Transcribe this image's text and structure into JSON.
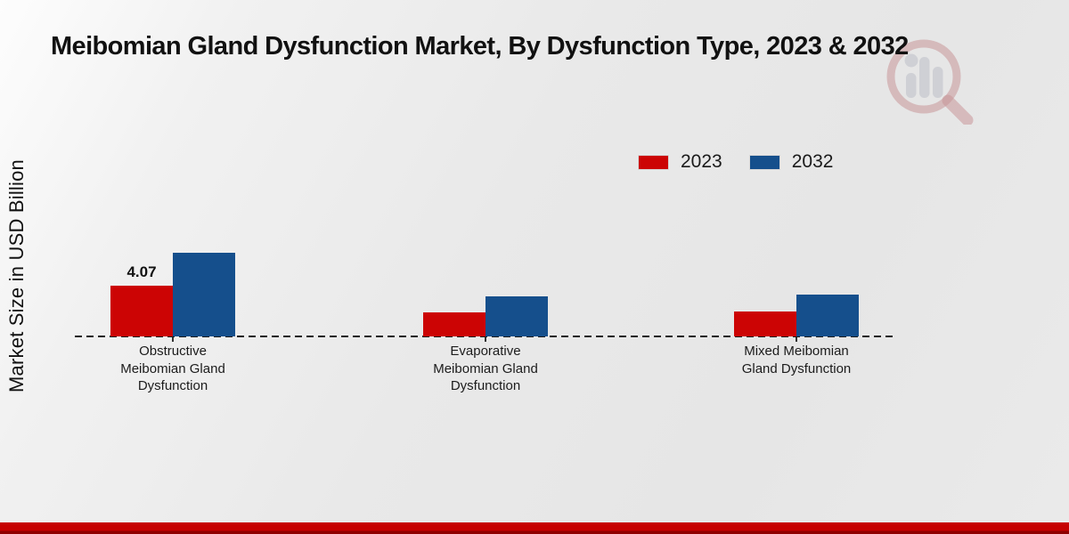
{
  "page": {
    "title": "Meibomian Gland Dysfunction Market, By Dysfunction Type, 2023 & 2032",
    "y_axis_label": "Market Size in USD Billion"
  },
  "watermark": {
    "icon": "magnifier-bar-chart-logo",
    "ring_color": "#a33339",
    "bars_color": "#a9adb8"
  },
  "chart_data": {
    "type": "bar",
    "title": "Meibomian Gland Dysfunction Market, By Dysfunction Type, 2023 & 2032",
    "xlabel": "",
    "ylabel": "Market Size in USD Billion",
    "categories": [
      "Obstructive Meibomian Gland Dysfunction",
      "Evaporative Meibomian Gland Dysfunction",
      "Mixed Meibomian Gland Dysfunction"
    ],
    "series": [
      {
        "name": "2023",
        "color": "#cc0404",
        "values": [
          4.07,
          1.95,
          2.0
        ],
        "data_labels": [
          "4.07",
          "",
          ""
        ]
      },
      {
        "name": "2032",
        "color": "#154f8c",
        "values": [
          6.7,
          3.2,
          3.35
        ],
        "data_labels": [
          "",
          "",
          ""
        ]
      }
    ],
    "ylim": [
      0,
      8
    ],
    "grid": false,
    "legend_position": "top-right",
    "baseline_style": "dashed",
    "only_labeled_point": "2023 Obstructive = 4.07"
  },
  "footer": {
    "band_color": "#c60000"
  }
}
